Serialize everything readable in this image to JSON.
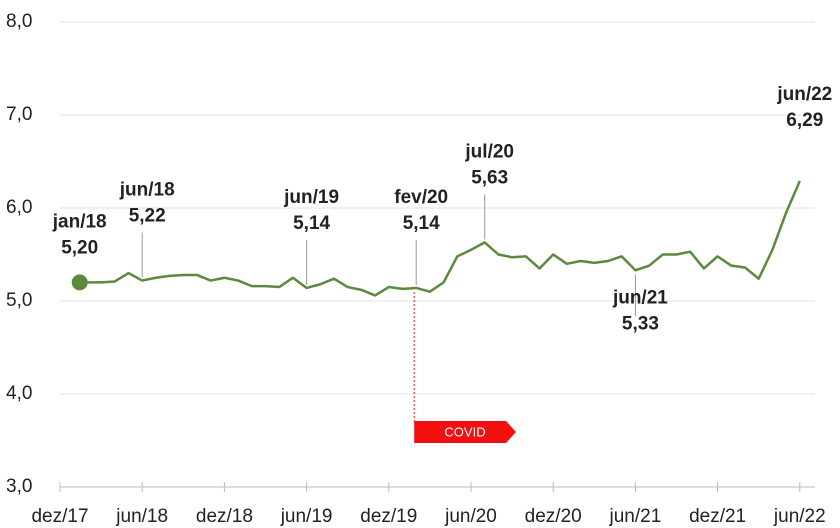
{
  "chart_data": {
    "type": "line",
    "categories": [
      "dez/17",
      null,
      null,
      null,
      null,
      null,
      "jun/18",
      null,
      null,
      null,
      null,
      null,
      "dez/18",
      null,
      null,
      null,
      null,
      null,
      "jun/19",
      null,
      null,
      null,
      null,
      null,
      "dez/19",
      null,
      null,
      null,
      null,
      null,
      "jun/20",
      null,
      null,
      null,
      null,
      null,
      "dez/20",
      null,
      null,
      null,
      null,
      null,
      "jun/21",
      null,
      null,
      null,
      null,
      null,
      "dez/21",
      null,
      null,
      null,
      null,
      null,
      "jun/22"
    ],
    "series": [
      {
        "color": "#5b8a3c",
        "values": [
          null,
          5.2,
          5.2,
          5.2,
          5.21,
          5.3,
          5.22,
          5.25,
          5.27,
          5.28,
          5.28,
          5.22,
          5.25,
          5.22,
          5.16,
          5.16,
          5.15,
          5.25,
          5.14,
          5.18,
          5.24,
          5.15,
          5.12,
          5.06,
          5.15,
          5.13,
          5.14,
          5.1,
          5.2,
          5.48,
          5.55,
          5.63,
          5.5,
          5.47,
          5.48,
          5.35,
          5.5,
          5.4,
          5.43,
          5.41,
          5.43,
          5.48,
          5.33,
          5.38,
          5.5,
          5.5,
          5.53,
          5.35,
          5.48,
          5.38,
          5.36,
          5.24,
          5.55,
          5.95,
          6.29
        ],
        "point_labels": [
          null,
          "jan/18",
          null,
          null,
          null,
          null,
          "jun/18",
          null,
          null,
          null,
          null,
          null,
          null,
          null,
          null,
          null,
          null,
          null,
          "jun/19",
          null,
          null,
          null,
          null,
          null,
          null,
          null,
          "fev/20",
          null,
          null,
          null,
          null,
          "jul/20",
          null,
          null,
          null,
          null,
          null,
          null,
          null,
          null,
          null,
          null,
          "jun/21",
          null,
          null,
          null,
          null,
          null,
          null,
          null,
          null,
          null,
          null,
          null,
          "jun/22"
        ],
        "value_labels": [
          null,
          "5,20",
          null,
          null,
          null,
          null,
          "5,22",
          null,
          null,
          null,
          null,
          null,
          null,
          null,
          null,
          null,
          null,
          null,
          "5,14",
          null,
          null,
          null,
          null,
          null,
          null,
          null,
          "5,14",
          null,
          null,
          null,
          null,
          "5,63",
          null,
          null,
          null,
          null,
          null,
          null,
          null,
          null,
          null,
          null,
          "5,33",
          null,
          null,
          null,
          null,
          null,
          null,
          null,
          null,
          null,
          null,
          null,
          "6,29"
        ]
      }
    ],
    "ylim": [
      3.0,
      8.0
    ],
    "yticks": [
      {
        "value": 3,
        "label": "3,0"
      },
      {
        "value": 4,
        "label": "4,0"
      },
      {
        "value": 5,
        "label": "5,0"
      },
      {
        "value": 6,
        "label": "6,0"
      },
      {
        "value": 7,
        "label": "7,0"
      },
      {
        "value": 8,
        "label": "8,0"
      }
    ],
    "grid": true,
    "covid_marker": {
      "text": "COVID"
    }
  }
}
